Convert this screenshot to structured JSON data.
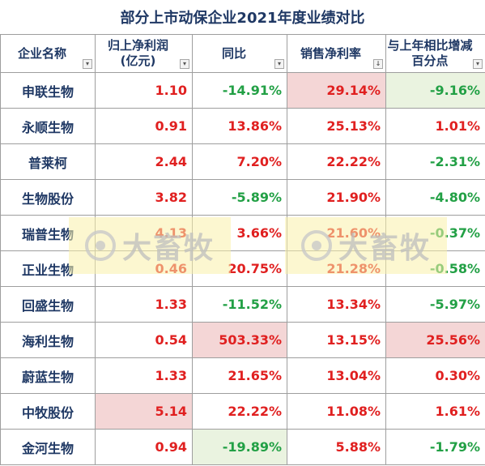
{
  "title": "部分上市动保企业2021年度业绩对比",
  "headers": [
    {
      "label": "企业名称",
      "filter": true
    },
    {
      "label": "归上净利润\n(亿元)",
      "filter": true
    },
    {
      "label": "同比",
      "filter": true
    },
    {
      "label": "销售净利率",
      "filter": true
    },
    {
      "label": "与上年相比增减\n百分点",
      "filter": true
    }
  ],
  "rows": [
    {
      "name": "申联生物",
      "profit": "1.10",
      "yoy": "-14.91%",
      "margin": "29.14%",
      "change": "-9.16%"
    },
    {
      "name": "永顺生物",
      "profit": "0.91",
      "yoy": "13.86%",
      "margin": "25.13%",
      "change": "1.01%"
    },
    {
      "name": "普莱柯",
      "profit": "2.44",
      "yoy": "7.20%",
      "margin": "22.22%",
      "change": "-2.31%"
    },
    {
      "name": "生物股份",
      "profit": "3.82",
      "yoy": "-5.89%",
      "margin": "21.90%",
      "change": "-4.80%"
    },
    {
      "name": "瑞普生物",
      "profit": "4.13",
      "yoy": "3.66%",
      "margin": "21.60%",
      "change": "-0.37%"
    },
    {
      "name": "正业生物",
      "profit": "0.46",
      "yoy": "20.75%",
      "margin": "21.28%",
      "change": "-0.58%"
    },
    {
      "name": "回盛生物",
      "profit": "1.33",
      "yoy": "-11.52%",
      "margin": "13.34%",
      "change": "-5.97%"
    },
    {
      "name": "海利生物",
      "profit": "0.54",
      "yoy": "503.33%",
      "margin": "13.15%",
      "change": "25.56%"
    },
    {
      "name": "蔚蓝生物",
      "profit": "1.33",
      "yoy": "21.65%",
      "margin": "13.04%",
      "change": "0.30%"
    },
    {
      "name": "中牧股份",
      "profit": "5.14",
      "yoy": "22.22%",
      "margin": "11.08%",
      "change": "1.61%"
    },
    {
      "name": "金河生物",
      "profit": "0.94",
      "yoy": "-19.89%",
      "margin": "5.88%",
      "change": "-1.79%"
    }
  ],
  "highlights": {
    "0.margin": "pink",
    "0.change": "green",
    "7.yoy": "pink",
    "7.change": "pink",
    "9.profit": "pink",
    "10.yoy": "green"
  },
  "colors": {
    "positive": "#e02020",
    "negative": "#22a045",
    "header_text": "#1f3864"
  },
  "watermark": {
    "text": "大畜牧",
    "icon": "logo-icon"
  }
}
